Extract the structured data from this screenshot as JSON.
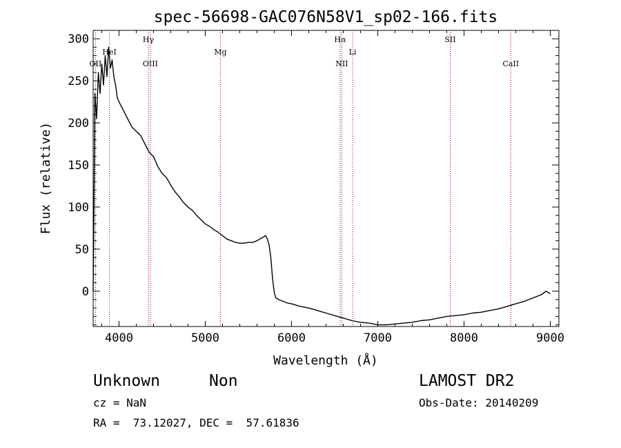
{
  "chart_data": {
    "type": "line",
    "title": "spec-56698-GAC076N58V1_sp02-166.fits",
    "xlabel": "Wavelength (Å)",
    "ylabel": "Flux (relative)",
    "xlim": [
      3700,
      9100
    ],
    "ylim": [
      -42,
      310
    ],
    "xticks": [
      4000,
      5000,
      6000,
      7000,
      8000,
      9000
    ],
    "yticks": [
      0,
      50,
      100,
      150,
      200,
      250,
      300
    ],
    "grid": false,
    "line_color": "#000000",
    "marker_color": "#8b0000",
    "series": [
      {
        "x": [
          3700,
          3710,
          3720,
          3740,
          3760,
          3780,
          3800,
          3820,
          3840,
          3860,
          3880,
          3900,
          3920,
          3940,
          3960,
          3980,
          4000,
          4050,
          4100,
          4150,
          4200,
          4250,
          4300,
          4350,
          4400,
          4450,
          4500,
          4550,
          4600,
          4650,
          4700,
          4750,
          4800,
          4850,
          4900,
          4950,
          5000,
          5050,
          5100,
          5150,
          5200,
          5250,
          5300,
          5350,
          5400,
          5450,
          5500,
          5550,
          5600,
          5650,
          5700,
          5720,
          5740,
          5760,
          5780,
          5800,
          5820,
          5850,
          5900,
          5950,
          6000,
          6100,
          6200,
          6300,
          6400,
          6500,
          6600,
          6700,
          6800,
          6900,
          7000,
          7100,
          7200,
          7300,
          7400,
          7500,
          7600,
          7700,
          7800,
          7900,
          8000,
          8100,
          8200,
          8300,
          8400,
          8500,
          8600,
          8700,
          8800,
          8900,
          8950,
          9000
        ],
        "y": [
          0,
          110,
          235,
          205,
          260,
          235,
          270,
          245,
          280,
          255,
          290,
          265,
          275,
          255,
          245,
          230,
          225,
          215,
          205,
          195,
          190,
          185,
          175,
          165,
          160,
          148,
          140,
          135,
          126,
          118,
          112,
          105,
          100,
          96,
          90,
          85,
          80,
          77,
          73,
          70,
          66,
          62,
          60,
          58,
          57,
          57,
          58,
          58,
          60,
          63,
          66,
          62,
          55,
          40,
          15,
          -2,
          -8,
          -10,
          -12,
          -14,
          -15,
          -18,
          -20,
          -23,
          -26,
          -29,
          -32,
          -35,
          -37,
          -38,
          -40,
          -40,
          -39,
          -38,
          -37,
          -35,
          -34,
          -32,
          -30,
          -29,
          -28,
          -26,
          -25,
          -23,
          -21,
          -18,
          -15,
          -12,
          -8,
          -4,
          0,
          -3
        ]
      }
    ],
    "lines": [
      {
        "label": "OII",
        "x": 3727,
        "row": 3
      },
      {
        "label": "HeI",
        "x": 3889,
        "row": 2
      },
      {
        "label": "Hγ",
        "x": 4340,
        "row": 1
      },
      {
        "label": "OIII",
        "x": 4363,
        "row": 3
      },
      {
        "label": "Mg",
        "x": 5175,
        "row": 2
      },
      {
        "label": "Hα",
        "x": 6563,
        "row": 1
      },
      {
        "label": "NII",
        "x": 6583,
        "row": 3
      },
      {
        "label": "Li",
        "x": 6708,
        "row": 2
      },
      {
        "label": "SII",
        "x": 7840,
        "row": 1
      },
      {
        "label": "CaII",
        "x": 8542,
        "row": 3
      }
    ]
  },
  "footer": {
    "class_label": "Unknown",
    "subclass_label": "Non",
    "survey": "LAMOST DR2",
    "cz": "cz = NaN",
    "obs_date": "Obs-Date: 20140209",
    "coords": "RA =  73.12027, DEC =  57.61836"
  }
}
